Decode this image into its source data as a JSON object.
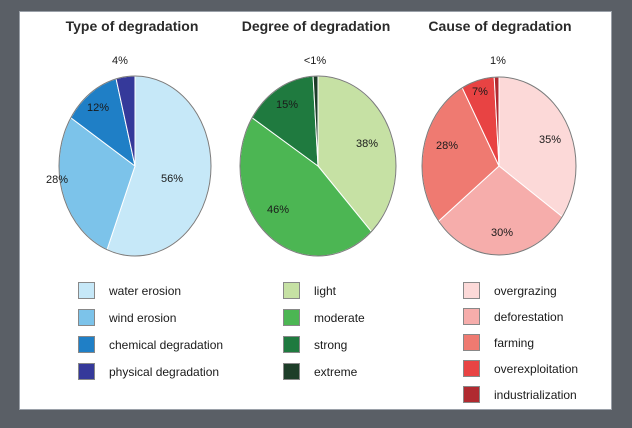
{
  "chart_data": [
    {
      "type": "pie",
      "title": "Type of degradation",
      "slices": [
        {
          "label": "water erosion",
          "value": 56,
          "display": "56%",
          "color": "#c6e8f8"
        },
        {
          "label": "wind erosion",
          "value": 28,
          "display": "28%",
          "color": "#7cc3ea"
        },
        {
          "label": "chemical degradation",
          "value": 12,
          "display": "12%",
          "color": "#1f7fc6"
        },
        {
          "label": "physical degradation",
          "value": 4,
          "display": "4%",
          "color": "#35399a"
        }
      ]
    },
    {
      "type": "pie",
      "title": "Degree of degradation",
      "slices": [
        {
          "label": "light",
          "value": 38,
          "display": "38%",
          "color": "#c6e1a4"
        },
        {
          "label": "moderate",
          "value": 46,
          "display": "46%",
          "color": "#4cb653"
        },
        {
          "label": "strong",
          "value": 15,
          "display": "15%",
          "color": "#1f7a3f"
        },
        {
          "label": "extreme",
          "value": 1,
          "display": "<1%",
          "color": "#1d3d28"
        }
      ]
    },
    {
      "type": "pie",
      "title": "Cause of degradation",
      "slices": [
        {
          "label": "overgrazing",
          "value": 35,
          "display": "35%",
          "color": "#fcd9d8"
        },
        {
          "label": "deforestation",
          "value": 30,
          "display": "30%",
          "color": "#f6adab"
        },
        {
          "label": "farming",
          "value": 28,
          "display": "28%",
          "color": "#ef7a71"
        },
        {
          "label": "overexploitation",
          "value": 7,
          "display": "7%",
          "color": "#e84343"
        },
        {
          "label": "industrialization",
          "value": 1,
          "display": "1%",
          "color": "#b02a30"
        }
      ]
    }
  ]
}
